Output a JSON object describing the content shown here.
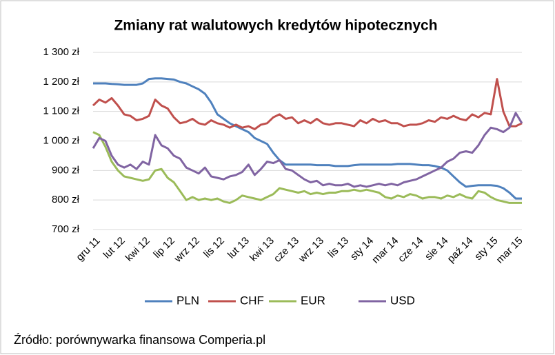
{
  "chart_data": {
    "type": "line",
    "title": "Zmiany rat walutowych kredytów hipotecznych",
    "source": "Źródło: porównywarka finansowa Comperia.pl",
    "categories": [
      "gru 11",
      null,
      null,
      null,
      "lut 12",
      null,
      null,
      null,
      "kwi 12",
      null,
      null,
      null,
      "lip 12",
      null,
      null,
      null,
      "wrz 12",
      null,
      null,
      null,
      "lis 12",
      null,
      null,
      null,
      "lut 13",
      null,
      null,
      null,
      "kwi 13",
      null,
      null,
      null,
      "cze 13",
      null,
      null,
      null,
      "wrz 13",
      null,
      null,
      null,
      "lis 13",
      null,
      null,
      null,
      "sty 14",
      null,
      null,
      null,
      "mar 14",
      null,
      null,
      null,
      "cze 14",
      null,
      null,
      null,
      "sie 14",
      null,
      null,
      null,
      "paź 14",
      null,
      null,
      null,
      "sty 15",
      null,
      null,
      null,
      "mar 15",
      null
    ],
    "series": [
      {
        "name": "PLN",
        "color": "#4f81bd",
        "values": [
          1195,
          1195,
          1195,
          1193,
          1192,
          1190,
          1190,
          1190,
          1195,
          1210,
          1212,
          1212,
          1210,
          1208,
          1200,
          1195,
          1185,
          1175,
          1160,
          1130,
          1090,
          1075,
          1060,
          1050,
          1040,
          1030,
          1010,
          1000,
          990,
          960,
          935,
          920,
          920,
          920,
          920,
          920,
          918,
          918,
          918,
          915,
          915,
          915,
          918,
          920,
          920,
          920,
          920,
          920,
          920,
          922,
          922,
          922,
          920,
          918,
          918,
          915,
          910,
          900,
          880,
          860,
          845,
          848,
          850,
          850,
          850,
          848,
          840,
          825,
          805,
          805
        ]
      },
      {
        "name": "CHF",
        "color": "#c0504d",
        "values": [
          1120,
          1140,
          1130,
          1145,
          1120,
          1090,
          1085,
          1070,
          1075,
          1085,
          1140,
          1120,
          1110,
          1080,
          1060,
          1065,
          1075,
          1060,
          1055,
          1070,
          1060,
          1055,
          1045,
          1055,
          1045,
          1050,
          1040,
          1055,
          1060,
          1080,
          1090,
          1075,
          1080,
          1060,
          1070,
          1060,
          1075,
          1060,
          1055,
          1060,
          1060,
          1055,
          1050,
          1070,
          1060,
          1075,
          1065,
          1070,
          1060,
          1060,
          1050,
          1055,
          1055,
          1060,
          1070,
          1065,
          1080,
          1075,
          1085,
          1075,
          1070,
          1090,
          1080,
          1095,
          1090,
          1210,
          1100,
          1050,
          1050,
          1060
        ]
      },
      {
        "name": "EUR",
        "color": "#9bbb59",
        "values": [
          1030,
          1020,
          980,
          930,
          900,
          880,
          875,
          870,
          865,
          870,
          900,
          905,
          875,
          860,
          830,
          800,
          810,
          800,
          805,
          800,
          805,
          795,
          790,
          800,
          815,
          810,
          805,
          800,
          810,
          820,
          840,
          835,
          830,
          825,
          830,
          820,
          825,
          820,
          825,
          825,
          830,
          830,
          835,
          830,
          835,
          830,
          825,
          810,
          805,
          815,
          810,
          820,
          815,
          805,
          810,
          810,
          805,
          815,
          810,
          820,
          810,
          805,
          830,
          825,
          810,
          800,
          795,
          790,
          790,
          790
        ]
      },
      {
        "name": "USD",
        "color": "#8064a2",
        "values": [
          975,
          1010,
          1000,
          950,
          920,
          910,
          920,
          905,
          930,
          920,
          1020,
          985,
          975,
          950,
          940,
          910,
          900,
          890,
          910,
          880,
          875,
          870,
          880,
          885,
          895,
          920,
          885,
          905,
          930,
          925,
          935,
          905,
          900,
          885,
          870,
          860,
          865,
          850,
          855,
          850,
          850,
          855,
          845,
          850,
          845,
          850,
          855,
          850,
          855,
          850,
          860,
          865,
          870,
          880,
          890,
          900,
          910,
          930,
          940,
          960,
          965,
          960,
          985,
          1020,
          1045,
          1040,
          1030,
          1045,
          1095,
          1060
        ]
      }
    ],
    "ylim": [
      700,
      1300
    ],
    "yticks": [
      {
        "value": 700,
        "label": "700 zł"
      },
      {
        "value": 800,
        "label": "800 zł"
      },
      {
        "value": 900,
        "label": "900 zł"
      },
      {
        "value": 1000,
        "label": "1 000 zł"
      },
      {
        "value": 1100,
        "label": "1 100 zł"
      },
      {
        "value": 1200,
        "label": "1 200 zł"
      },
      {
        "value": 1300,
        "label": "1 300 zł"
      }
    ],
    "grid": true,
    "legend": "bottom"
  }
}
